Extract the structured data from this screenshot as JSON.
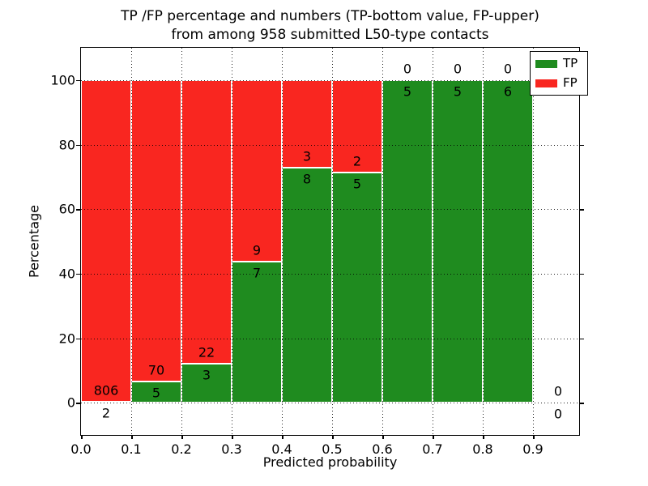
{
  "title": {
    "line1": "TP /FP percentage and numbers (TP-bottom value, FP-upper)",
    "line2": "from among 958 submitted L50-type contacts"
  },
  "axes": {
    "xlabel": "Predicted probability",
    "ylabel": "Percentage",
    "xtick_labels": [
      "0.0",
      "0.1",
      "0.2",
      "0.3",
      "0.4",
      "0.5",
      "0.6",
      "0.7",
      "0.8",
      "0.9"
    ],
    "ytick_labels": [
      "0",
      "20",
      "40",
      "60",
      "80",
      "100"
    ],
    "ytick_values": [
      0,
      20,
      40,
      60,
      80,
      100
    ]
  },
  "legend": {
    "items": [
      {
        "label": "TP",
        "color": "#1f8b1f"
      },
      {
        "label": "FP",
        "color": "#f92620"
      }
    ]
  },
  "chart_data": {
    "type": "bar",
    "stacked": true,
    "normalized_to_percent": true,
    "title": "TP /FP percentage and numbers (TP-bottom value, FP-upper) from among 958 submitted L50-type contacts",
    "xlabel": "Predicted probability",
    "ylabel": "Percentage",
    "total_contacts": 958,
    "xlim": [
      0.0,
      0.99
    ],
    "ylim": [
      -10,
      110
    ],
    "grid": true,
    "grid_style": "dotted",
    "legend_position": "upper right",
    "bin_width": 0.1,
    "colors": {
      "tp": "#1f8b1f",
      "fp": "#f92620",
      "bar_edge": "#ffffff"
    },
    "series": [
      {
        "name": "TP",
        "color": "#1f8b1f",
        "values": [
          2,
          5,
          3,
          7,
          8,
          5,
          5,
          5,
          6,
          0
        ]
      },
      {
        "name": "FP",
        "color": "#f92620",
        "values": [
          806,
          70,
          22,
          9,
          3,
          2,
          0,
          0,
          0,
          0
        ]
      }
    ],
    "bins": [
      {
        "x0": 0.0,
        "x1": 0.1,
        "tp": 2,
        "fp": 806,
        "tp_pct": 0.25,
        "fp_pct": 99.75
      },
      {
        "x0": 0.1,
        "x1": 0.2,
        "tp": 5,
        "fp": 70,
        "tp_pct": 6.67,
        "fp_pct": 93.33
      },
      {
        "x0": 0.2,
        "x1": 0.3,
        "tp": 3,
        "fp": 22,
        "tp_pct": 12.0,
        "fp_pct": 88.0
      },
      {
        "x0": 0.3,
        "x1": 0.4,
        "tp": 7,
        "fp": 9,
        "tp_pct": 43.75,
        "fp_pct": 56.25
      },
      {
        "x0": 0.4,
        "x1": 0.5,
        "tp": 8,
        "fp": 3,
        "tp_pct": 72.73,
        "fp_pct": 27.27
      },
      {
        "x0": 0.5,
        "x1": 0.6,
        "tp": 5,
        "fp": 2,
        "tp_pct": 71.43,
        "fp_pct": 28.57
      },
      {
        "x0": 0.6,
        "x1": 0.7,
        "tp": 5,
        "fp": 0,
        "tp_pct": 100,
        "fp_pct": 0
      },
      {
        "x0": 0.7,
        "x1": 0.8,
        "tp": 5,
        "fp": 0,
        "tp_pct": 100,
        "fp_pct": 0
      },
      {
        "x0": 0.8,
        "x1": 0.9,
        "tp": 6,
        "fp": 0,
        "tp_pct": 100,
        "fp_pct": 0
      },
      {
        "x0": 0.9,
        "x1": 1.0,
        "tp": 0,
        "fp": 0,
        "tp_pct": null,
        "fp_pct": null
      }
    ]
  }
}
